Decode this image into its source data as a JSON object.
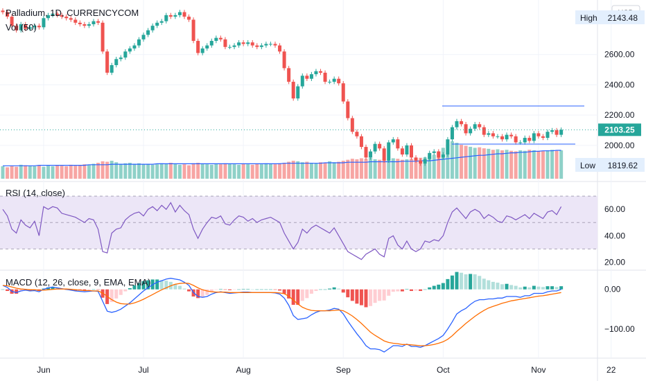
{
  "header": {
    "symbol": "Palladium, 1D, CURRENCYCOM",
    "vol_label": "Vol (50)",
    "currency": "USD",
    "high_label": "High",
    "high_value": "2143.48",
    "low_label": "Low",
    "low_value": "1819.62",
    "last_price": "2103.25"
  },
  "colors": {
    "up": "#26a69a",
    "down": "#ef5350",
    "up_volume": "#8fd1c8",
    "down_volume": "#f7a5a3",
    "vol_ma": "#2962ff",
    "rsi_line": "#7e57c2",
    "rsi_band": "#ece6f7",
    "macd_line": "#2962ff",
    "signal_line": "#ff6d00",
    "hist_up_strong": "#26a69a",
    "hist_up_weak": "#b2dfdb",
    "hist_down_strong": "#ef5350",
    "hist_down_weak": "#ffcdd2",
    "trendline": "#2962ff",
    "grid": "#f0f3fa"
  },
  "chart_data": [
    {
      "type": "candlestick",
      "title": "Palladium, 1D, CURRENCYCOM",
      "y_ticks": [
        "2600.00",
        "2400.00",
        "2200.00",
        "2000.00"
      ],
      "ylim": [
        1780,
        2960
      ],
      "x_ticks": [
        "Jun",
        "Jul",
        "Aug",
        "Sep",
        "Oct",
        "Nov",
        "22"
      ],
      "last": 2103.25,
      "high": 2143.48,
      "low": 1819.62,
      "closes": [
        2880,
        2850,
        2790,
        2760,
        2800,
        2770,
        2780,
        2790,
        2780,
        2840,
        2860,
        2870,
        2860,
        2850,
        2840,
        2830,
        2810,
        2800,
        2790,
        2800,
        2820,
        2810,
        2620,
        2480,
        2530,
        2570,
        2580,
        2620,
        2640,
        2660,
        2700,
        2730,
        2760,
        2790,
        2810,
        2820,
        2860,
        2850,
        2860,
        2880,
        2850,
        2830,
        2690,
        2610,
        2640,
        2660,
        2690,
        2710,
        2700,
        2650,
        2650,
        2660,
        2680,
        2670,
        2680,
        2660,
        2650,
        2660,
        2670,
        2670,
        2660,
        2620,
        2510,
        2420,
        2310,
        2390,
        2460,
        2440,
        2470,
        2490,
        2480,
        2420,
        2420,
        2440,
        2410,
        2290,
        2180,
        2090,
        2060,
        1990,
        1920,
        1960,
        2010,
        1980,
        1900,
        2020,
        2040,
        1980,
        1940,
        2000,
        1920,
        1900,
        1880,
        1910,
        1950,
        1960,
        1920,
        1940,
        2040,
        2120,
        2160,
        2140,
        2080,
        2110,
        2140,
        2120,
        2070,
        2080,
        2060,
        2060,
        2040,
        2070,
        2060,
        2020,
        2020,
        2050,
        2030,
        2080,
        2060,
        2050,
        2090,
        2100,
        2070,
        2103.25
      ]
    },
    {
      "type": "bar",
      "title": "Vol (50)",
      "values": [
        25,
        23,
        26,
        24,
        28,
        27,
        26,
        25,
        27,
        24,
        26,
        25,
        27,
        26,
        25,
        28,
        26,
        27,
        29,
        28,
        30,
        32,
        35,
        34,
        36,
        33,
        30,
        31,
        32,
        30,
        31,
        29,
        30,
        28,
        29,
        31,
        30,
        32,
        30,
        28,
        29,
        27,
        31,
        32,
        30,
        29,
        28,
        30,
        29,
        31,
        30,
        29,
        28,
        30,
        29,
        28,
        30,
        29,
        31,
        30,
        29,
        31,
        32,
        34,
        36,
        35,
        33,
        34,
        32,
        31,
        33,
        32,
        35,
        33,
        34,
        36,
        38,
        40,
        39,
        41,
        40,
        42,
        39,
        38,
        40,
        39,
        41,
        40,
        38,
        39,
        40,
        41,
        42,
        43,
        45,
        48,
        55,
        62,
        70,
        75,
        72,
        68,
        66,
        64,
        62,
        63,
        61,
        60,
        58,
        59,
        57,
        58,
        56,
        55,
        57,
        56,
        58,
        57,
        55,
        56,
        57,
        58,
        56,
        57
      ],
      "ma": [
        26,
        26,
        26,
        26,
        26,
        26,
        26,
        26,
        27,
        27,
        27,
        27,
        27,
        27,
        27,
        27,
        27,
        27,
        27,
        28,
        28,
        28,
        28,
        28,
        29,
        29,
        29,
        29,
        29,
        29,
        29,
        29,
        29,
        29,
        30,
        30,
        30,
        30,
        30,
        30,
        30,
        30,
        30,
        30,
        30,
        30,
        30,
        30,
        30,
        30,
        30,
        30,
        30,
        30,
        30,
        30,
        30,
        30,
        30,
        30,
        30,
        30,
        31,
        31,
        31,
        31,
        31,
        31,
        31,
        31,
        31,
        32,
        32,
        32,
        32,
        32,
        33,
        33,
        33,
        33,
        33,
        34,
        34,
        34,
        34,
        34,
        34,
        34,
        35,
        35,
        35,
        35,
        36,
        36,
        36,
        37,
        38,
        39,
        40,
        41,
        42,
        43,
        44,
        45,
        46,
        47,
        47,
        48,
        49,
        50,
        50,
        51,
        52,
        52,
        53,
        53,
        54,
        55,
        55,
        56,
        56,
        56,
        57,
        57
      ]
    },
    {
      "type": "line",
      "title": "RSI (14, close)",
      "y_ticks": [
        "60.00",
        "40.00",
        "20.00"
      ],
      "ylim": [
        15,
        80
      ],
      "band": [
        30,
        70
      ],
      "mid": 50,
      "values": [
        60,
        55,
        45,
        42,
        52,
        48,
        46,
        51,
        40,
        62,
        60,
        62,
        61,
        57,
        56,
        55,
        54,
        52,
        50,
        53,
        52,
        45,
        28,
        27,
        42,
        45,
        46,
        52,
        55,
        57,
        58,
        55,
        60,
        62,
        59,
        63,
        60,
        65,
        58,
        63,
        59,
        56,
        45,
        38,
        45,
        50,
        54,
        53,
        55,
        49,
        48,
        52,
        55,
        54,
        51,
        53,
        50,
        52,
        53,
        54,
        52,
        50,
        42,
        36,
        30,
        35,
        45,
        42,
        46,
        48,
        46,
        44,
        42,
        46,
        40,
        34,
        28,
        26,
        24,
        22,
        26,
        28,
        30,
        26,
        24,
        38,
        40,
        33,
        30,
        36,
        30,
        28,
        30,
        36,
        35,
        37,
        36,
        40,
        50,
        58,
        61,
        57,
        53,
        58,
        60,
        58,
        53,
        56,
        54,
        51,
        50,
        55,
        54,
        52,
        54,
        56,
        53,
        57,
        55,
        53,
        58,
        59,
        56,
        62
      ]
    },
    {
      "type": "line",
      "title": "MACD (12, 26, close, 9, EMA, EMA)",
      "y_ticks": [
        "0.00",
        "−100.00"
      ],
      "ylim": [
        -170,
        45
      ],
      "macd": [
        10,
        5,
        -5,
        -8,
        -4,
        -2,
        -4,
        -3,
        -6,
        0,
        4,
        6,
        4,
        2,
        0,
        -2,
        -4,
        -5,
        -6,
        -5,
        -4,
        -5,
        -30,
        -55,
        -58,
        -55,
        -50,
        -42,
        -34,
        -24,
        -14,
        -4,
        4,
        12,
        18,
        22,
        26,
        28,
        26,
        24,
        18,
        10,
        -8,
        -18,
        -20,
        -18,
        -12,
        -8,
        -6,
        -8,
        -10,
        -9,
        -8,
        -7,
        -7,
        -8,
        -8,
        -8,
        -8,
        -8,
        -9,
        -12,
        -22,
        -40,
        -66,
        -76,
        -74,
        -72,
        -64,
        -58,
        -54,
        -54,
        -52,
        -48,
        -50,
        -62,
        -80,
        -96,
        -112,
        -126,
        -142,
        -150,
        -150,
        -152,
        -158,
        -150,
        -142,
        -142,
        -144,
        -138,
        -144,
        -144,
        -146,
        -142,
        -136,
        -130,
        -124,
        -116,
        -100,
        -82,
        -62,
        -54,
        -48,
        -38,
        -30,
        -26,
        -26,
        -24,
        -24,
        -22,
        -22,
        -18,
        -18,
        -18,
        -20,
        -16,
        -16,
        -10,
        -10,
        -10,
        -6,
        -4,
        -4,
        0
      ],
      "signal": [
        10,
        9,
        6,
        3,
        1,
        0,
        -1,
        -1,
        -2,
        -2,
        -1,
        0,
        1,
        1,
        1,
        0,
        -1,
        -2,
        -3,
        -3,
        -4,
        -4,
        -9,
        -18,
        -26,
        -32,
        -36,
        -37,
        -37,
        -34,
        -30,
        -25,
        -19,
        -13,
        -7,
        -1,
        4,
        9,
        13,
        15,
        16,
        15,
        10,
        4,
        -1,
        -4,
        -6,
        -7,
        -7,
        -7,
        -8,
        -8,
        -8,
        -8,
        -8,
        -8,
        -8,
        -8,
        -8,
        -8,
        -8,
        -9,
        -11,
        -17,
        -27,
        -37,
        -45,
        -50,
        -53,
        -54,
        -54,
        -54,
        -54,
        -53,
        -52,
        -54,
        -60,
        -67,
        -76,
        -86,
        -97,
        -108,
        -116,
        -123,
        -130,
        -134,
        -136,
        -137,
        -139,
        -139,
        -140,
        -141,
        -142,
        -142,
        -141,
        -139,
        -136,
        -132,
        -126,
        -117,
        -106,
        -96,
        -86,
        -77,
        -68,
        -60,
        -53,
        -47,
        -43,
        -39,
        -35,
        -32,
        -29,
        -27,
        -25,
        -23,
        -21,
        -19,
        -17,
        -16,
        -14,
        -12,
        -10,
        -8
      ]
    }
  ]
}
